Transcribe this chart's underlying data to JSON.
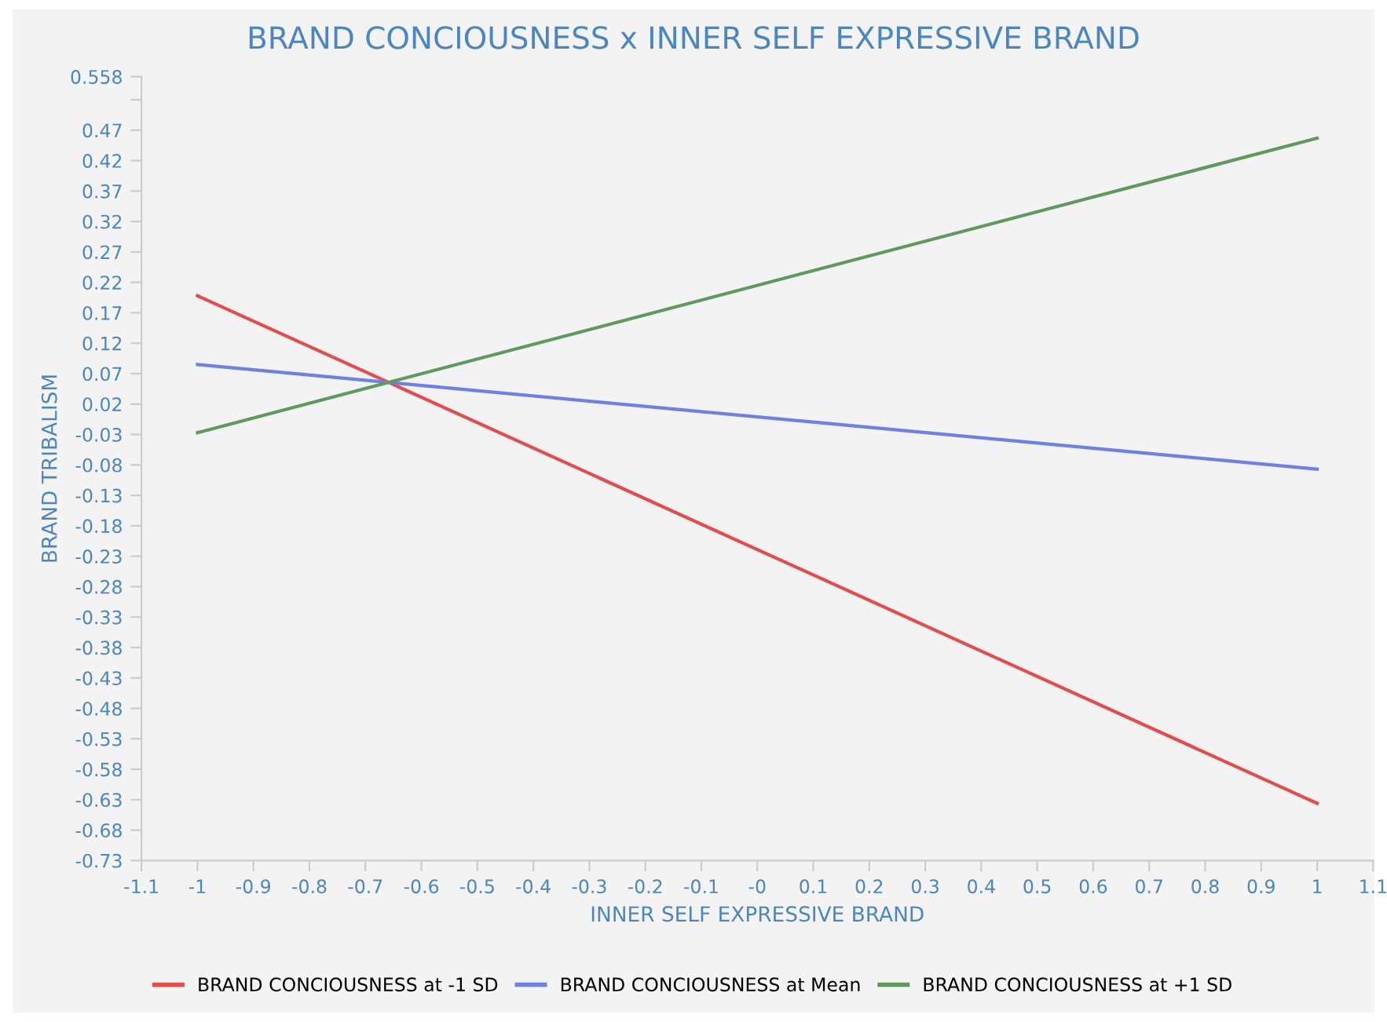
{
  "chart_data": {
    "type": "line",
    "title": "BRAND CONCIOUSNESS x INNER SELF EXPRESSIVE BRAND",
    "xlabel": "INNER SELF EXPRESSIVE BRAND",
    "ylabel": "BRAND TRIBALISM",
    "x": [
      -1,
      1
    ],
    "series": [
      {
        "name": "BRAND CONCIOUSNESS at -1 SD",
        "color": "#e84a4a",
        "values": [
          0.198,
          -0.636
        ]
      },
      {
        "name": "BRAND CONCIOUSNESS at Mean",
        "color": "#6b80e8",
        "values": [
          0.085,
          -0.087
        ]
      },
      {
        "name": "BRAND CONCIOUSNESS at +1 SD",
        "color": "#5e9a5e",
        "values": [
          -0.027,
          0.457
        ]
      }
    ],
    "xlim": [
      -1.1,
      1.1
    ],
    "xticks": [
      -1.1,
      -1,
      -0.9,
      -0.8,
      -0.7,
      -0.6,
      -0.5,
      -0.4,
      -0.3,
      -0.2,
      -0.1,
      {
        "value": 0,
        "label": "-0"
      },
      0.1,
      0.2,
      0.3,
      0.4,
      0.5,
      0.6,
      0.7,
      0.8,
      0.9,
      1,
      1.1
    ],
    "ylim": [
      -0.73,
      0.558
    ],
    "yticks": [
      0.558,
      {
        "value": 0.52,
        "label": null
      },
      0.47,
      0.42,
      0.37,
      0.32,
      0.27,
      0.22,
      0.17,
      0.12,
      0.07,
      0.02,
      -0.03,
      -0.08,
      -0.13,
      -0.18,
      -0.23,
      -0.28,
      -0.33,
      -0.38,
      -0.43,
      -0.48,
      -0.53,
      -0.58,
      -0.63,
      -0.68,
      -0.73
    ],
    "grid": false,
    "legend": "bottom",
    "marker": "none",
    "line_style": "solid"
  }
}
